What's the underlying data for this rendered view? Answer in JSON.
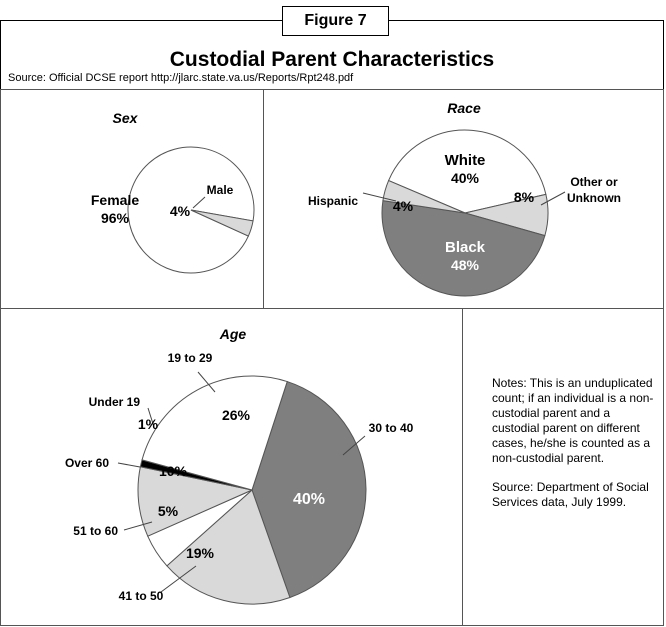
{
  "figure_label": "Figure 7",
  "title": "Custodial Parent Characteristics",
  "source": "Source: Official DCSE report http://jlarc.state.va.us/Reports/Rpt248.pdf",
  "notes": {
    "note": "Notes:  This is an unduplicated count; if an individual is a non-custodial parent and a custodial parent on different cases, he/she is counted as a non-custodial parent.",
    "source": "Source:  Department of Social Services data, July 1999."
  },
  "chart_data": [
    {
      "type": "pie",
      "title": "Sex",
      "slices": [
        {
          "label": "Female",
          "value": 96,
          "value_label": "96%",
          "color": "#ffffff"
        },
        {
          "label": "Male",
          "value": 4,
          "value_label": "4%",
          "color": "#d9d9d9"
        }
      ]
    },
    {
      "type": "pie",
      "title": "Race",
      "slices": [
        {
          "label": "White",
          "value": 40,
          "value_label": "40%",
          "color": "#ffffff"
        },
        {
          "label": "Other or Unknown",
          "value": 8,
          "value_label": "8%",
          "color": "#d9d9d9"
        },
        {
          "label": "Black",
          "value": 48,
          "value_label": "48%",
          "color": "#7f7f7f"
        },
        {
          "label": "Hispanic",
          "value": 4,
          "value_label": "4%",
          "color": "#d9d9d9"
        }
      ]
    },
    {
      "type": "pie",
      "title": "Age",
      "slices": [
        {
          "label": "30 to 40",
          "value": 40,
          "value_label": "40%",
          "color": "#7f7f7f"
        },
        {
          "label": "41 to 50",
          "value": 19,
          "value_label": "19%",
          "color": "#d9d9d9"
        },
        {
          "label": "51 to 60",
          "value": 5,
          "value_label": "5%",
          "color": "#ffffff"
        },
        {
          "label": "Over 60",
          "value": 10,
          "value_label": "10%",
          "color": "#d9d9d9"
        },
        {
          "label": "Under 19",
          "value": 1,
          "value_label": "1%",
          "color": "#000000"
        },
        {
          "label": "19 to 29",
          "value": 26,
          "value_label": "26%",
          "color": "#ffffff"
        }
      ]
    }
  ]
}
